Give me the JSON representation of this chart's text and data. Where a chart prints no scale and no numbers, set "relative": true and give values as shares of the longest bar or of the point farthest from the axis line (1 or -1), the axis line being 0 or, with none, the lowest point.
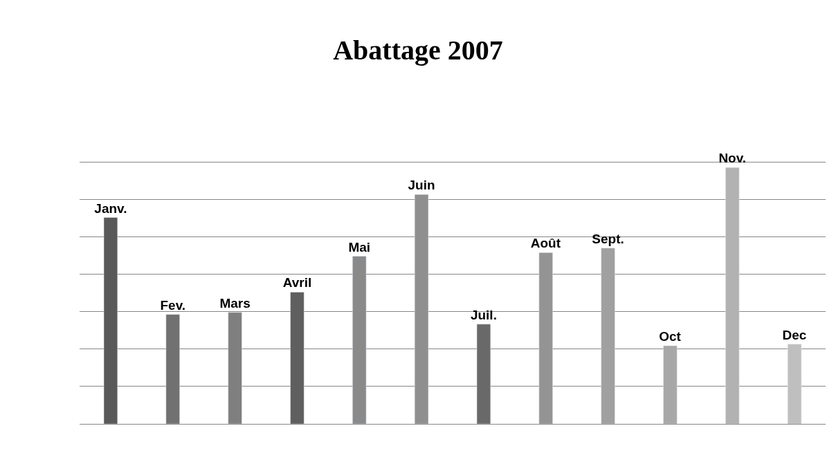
{
  "chart_data": {
    "type": "bar",
    "title": "Abattage 2007",
    "relative": true,
    "tick_labels": false,
    "grid": "y",
    "legend": false,
    "categories": [
      "Janv.",
      "Fev.",
      "Mars",
      "Avril",
      "Mai",
      "Juin",
      "Juil.",
      "Août",
      "Sept.",
      "Oct",
      "Nov.",
      "Dec"
    ],
    "values": [
      0.805,
      0.427,
      0.435,
      0.514,
      0.654,
      0.895,
      0.389,
      0.668,
      0.686,
      0.305,
      1,
      0.311
    ],
    "colors": [
      "#595959",
      "#717171",
      "#7f7f7f",
      "#5f5f5f",
      "#8a8a8a",
      "#8f8f8f",
      "#696969",
      "#949494",
      "#a0a0a0",
      "#a8a8a8",
      "#b2b2b2",
      "#bfbfbf"
    ]
  }
}
